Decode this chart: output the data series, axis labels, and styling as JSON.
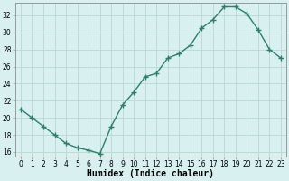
{
  "x": [
    0,
    1,
    2,
    3,
    4,
    5,
    6,
    7,
    8,
    9,
    10,
    11,
    12,
    13,
    14,
    15,
    16,
    17,
    18,
    19,
    20,
    21,
    22,
    23
  ],
  "y": [
    21.0,
    20.0,
    19.0,
    18.0,
    17.0,
    16.5,
    16.2,
    15.8,
    19.0,
    21.5,
    23.0,
    24.8,
    25.2,
    27.0,
    27.5,
    28.5,
    30.5,
    31.5,
    33.0,
    33.0,
    32.2,
    30.3,
    28.0,
    27.0
  ],
  "line_color": "#2e7d6e",
  "marker": "+",
  "marker_size": 4,
  "line_width": 1.0,
  "bg_color": "#d9f0f0",
  "grid_color": "#b8d8d8",
  "xlabel": "Humidex (Indice chaleur)",
  "xlabel_fontsize": 7,
  "tick_fontsize": 5.5,
  "ylim": [
    15.5,
    33.5
  ],
  "xlim": [
    -0.5,
    23.5
  ],
  "yticks": [
    16,
    18,
    20,
    22,
    24,
    26,
    28,
    30,
    32
  ],
  "xticks": [
    0,
    1,
    2,
    3,
    4,
    5,
    6,
    7,
    8,
    9,
    10,
    11,
    12,
    13,
    14,
    15,
    16,
    17,
    18,
    19,
    20,
    21,
    22,
    23
  ]
}
